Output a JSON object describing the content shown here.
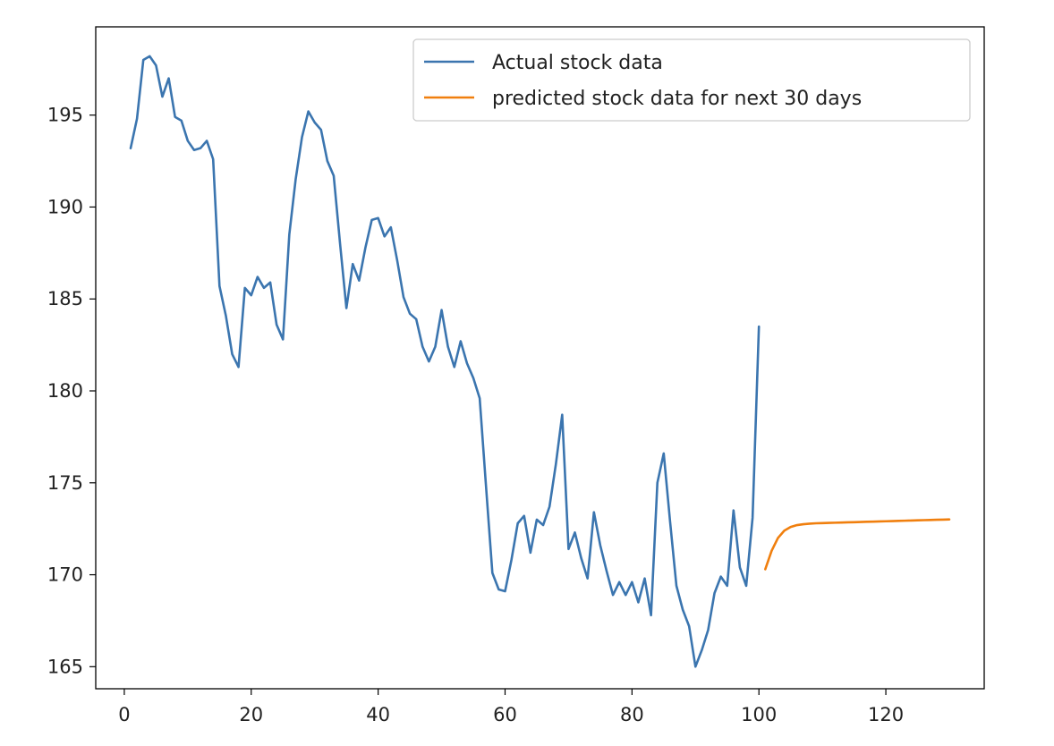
{
  "chart_data": {
    "type": "line",
    "title": "",
    "xlabel": "",
    "ylabel": "",
    "xlim": [
      -4.5,
      135.5
    ],
    "ylim": [
      163.8,
      199.8
    ],
    "xticks": [
      0,
      20,
      40,
      60,
      80,
      100,
      120
    ],
    "yticks": [
      165,
      170,
      175,
      180,
      185,
      190,
      195
    ],
    "grid": false,
    "legend_position": "top-right",
    "series": [
      {
        "name": "Actual stock data",
        "color": "#3b75af",
        "x": [
          1,
          2,
          3,
          4,
          5,
          6,
          7,
          8,
          9,
          10,
          11,
          12,
          13,
          14,
          15,
          16,
          17,
          18,
          19,
          20,
          21,
          22,
          23,
          24,
          25,
          26,
          27,
          28,
          29,
          30,
          31,
          32,
          33,
          34,
          35,
          36,
          37,
          38,
          39,
          40,
          41,
          42,
          43,
          44,
          45,
          46,
          47,
          48,
          49,
          50,
          51,
          52,
          53,
          54,
          55,
          56,
          57,
          58,
          59,
          60,
          61,
          62,
          63,
          64,
          65,
          66,
          67,
          68,
          69,
          70,
          71,
          72,
          73,
          74,
          75,
          76,
          77,
          78,
          79,
          80,
          81,
          82,
          83,
          84,
          85,
          86,
          87,
          88,
          89,
          90,
          91,
          92,
          93,
          94,
          95,
          96,
          97,
          98,
          99,
          100
        ],
        "values": [
          193.2,
          194.8,
          198.0,
          198.2,
          197.7,
          196.0,
          197.0,
          194.9,
          194.7,
          193.6,
          193.1,
          193.2,
          193.6,
          192.6,
          185.7,
          184.1,
          182.0,
          181.3,
          185.6,
          185.2,
          186.2,
          185.6,
          185.9,
          183.6,
          182.8,
          188.5,
          191.5,
          193.8,
          195.2,
          194.6,
          194.2,
          192.5,
          191.7,
          188.0,
          184.5,
          186.9,
          186.0,
          187.8,
          189.3,
          189.4,
          188.4,
          188.9,
          187.1,
          185.1,
          184.2,
          183.9,
          182.4,
          181.6,
          182.4,
          184.4,
          182.4,
          181.3,
          182.7,
          181.5,
          180.7,
          179.6,
          174.8,
          170.1,
          169.2,
          169.1,
          170.8,
          172.8,
          173.2,
          171.2,
          173.0,
          172.7,
          173.7,
          176.0,
          178.7,
          171.4,
          172.3,
          170.9,
          169.8,
          173.4,
          171.6,
          170.2,
          168.9,
          169.6,
          168.9,
          169.6,
          168.5,
          169.8,
          167.8,
          175.0,
          176.6,
          172.9,
          169.4,
          168.1,
          167.2,
          165.0,
          165.9,
          167.0,
          169.0,
          169.9,
          169.4,
          173.5,
          170.4,
          169.4,
          173.1,
          183.5
        ]
      },
      {
        "name": "predicted stock data for next 30 days",
        "color": "#f07f0e",
        "x": [
          101,
          102,
          103,
          104,
          105,
          106,
          107,
          108,
          109,
          110,
          111,
          112,
          113,
          114,
          115,
          116,
          117,
          118,
          119,
          120,
          121,
          122,
          123,
          124,
          125,
          126,
          127,
          128,
          129,
          130
        ],
        "values": [
          170.3,
          171.3,
          172.0,
          172.4,
          172.6,
          172.7,
          172.75,
          172.78,
          172.8,
          172.81,
          172.82,
          172.83,
          172.84,
          172.85,
          172.86,
          172.87,
          172.88,
          172.89,
          172.9,
          172.91,
          172.92,
          172.93,
          172.94,
          172.95,
          172.96,
          172.97,
          172.98,
          172.99,
          173.0,
          173.01
        ]
      }
    ]
  }
}
